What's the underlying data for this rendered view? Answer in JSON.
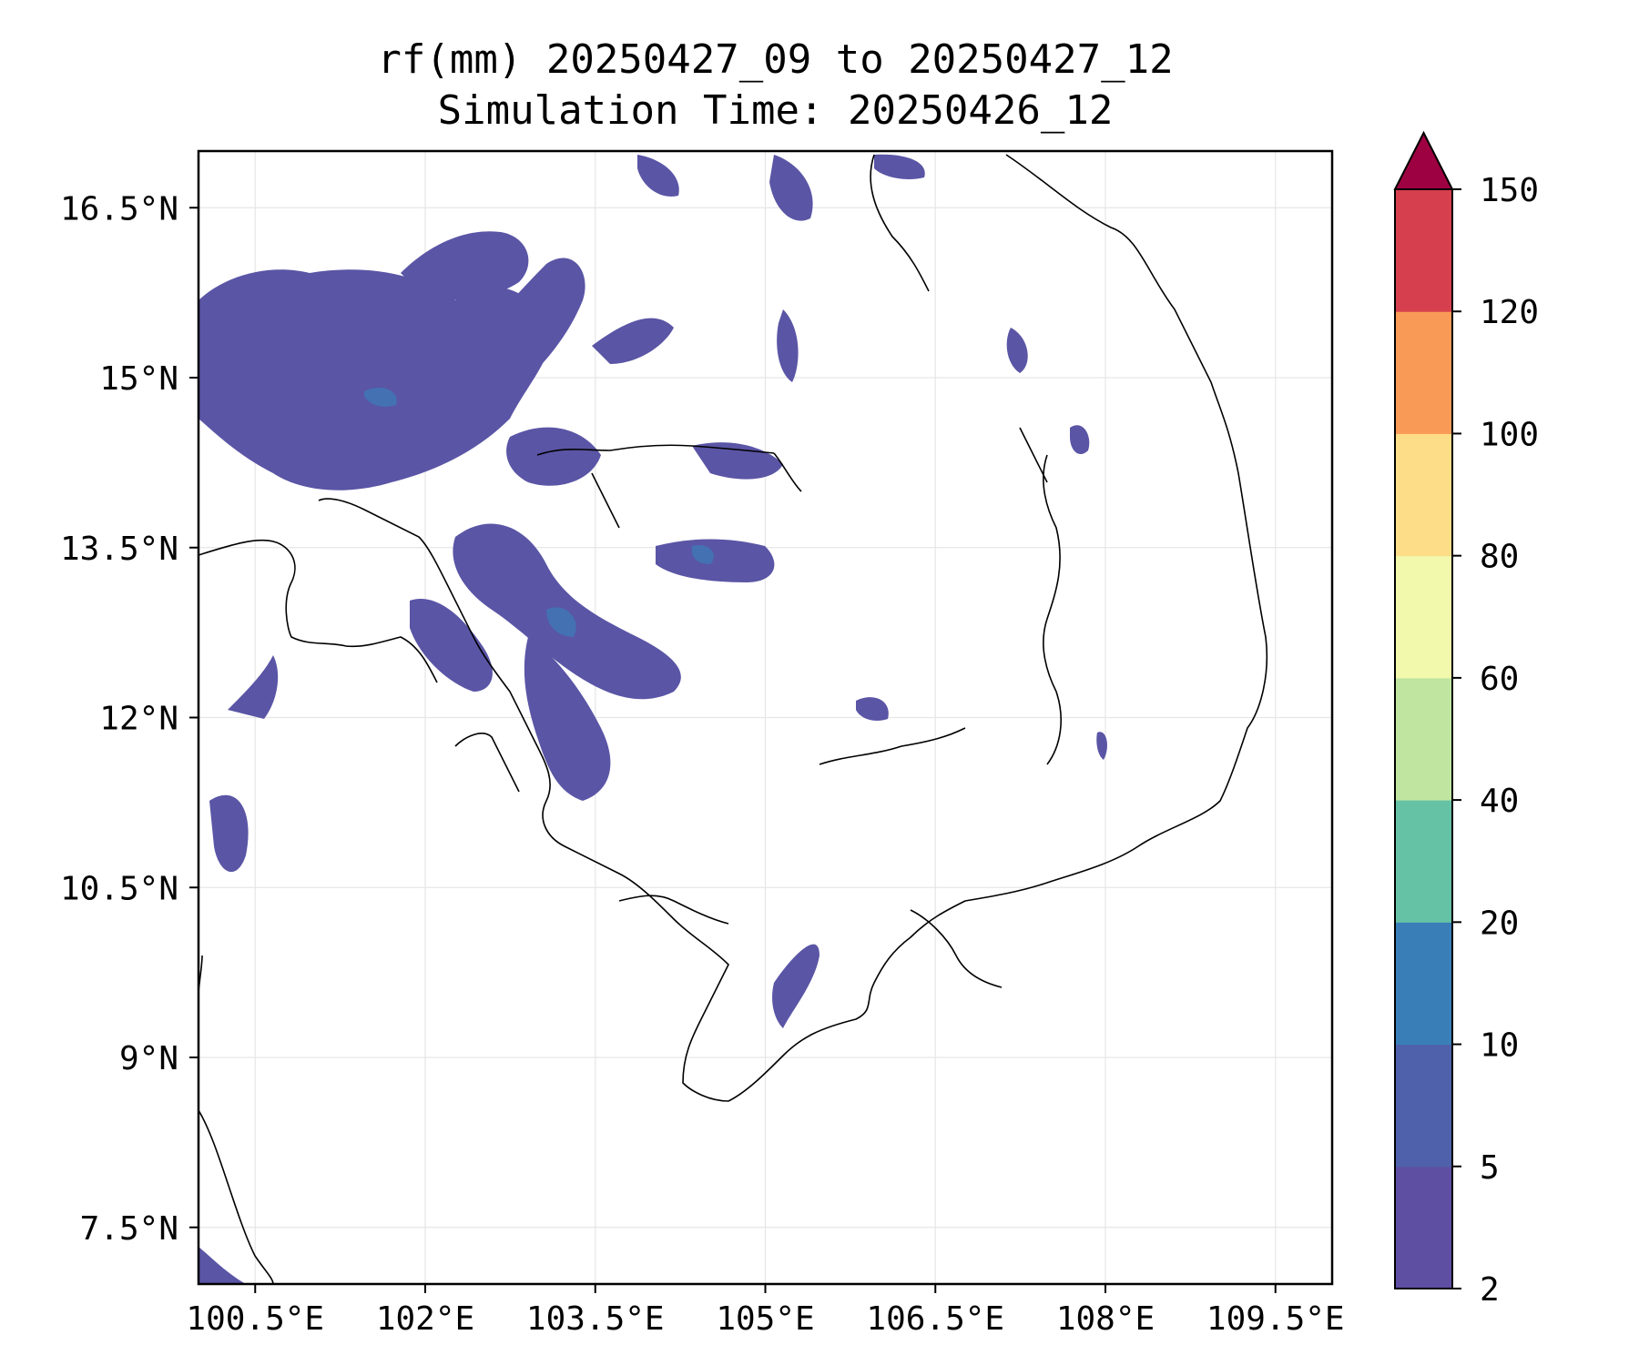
{
  "title": {
    "line1": "rf(mm) 20250427_09 to 20250427_12",
    "line2": "Simulation Time: 20250426_12"
  },
  "map": {
    "lon_range": [
      100.0,
      110.0
    ],
    "lat_range": [
      7.0,
      17.0
    ],
    "lat_ticks": [
      {
        "value": 16.5,
        "label": "16.5°N"
      },
      {
        "value": 15.0,
        "label": "15°N"
      },
      {
        "value": 13.5,
        "label": "13.5°N"
      },
      {
        "value": 12.0,
        "label": "12°N"
      },
      {
        "value": 10.5,
        "label": "10.5°N"
      },
      {
        "value": 9.0,
        "label": "9°N"
      },
      {
        "value": 7.5,
        "label": "7.5°N"
      }
    ],
    "lon_ticks": [
      {
        "value": 100.5,
        "label": "100.5°E"
      },
      {
        "value": 102.0,
        "label": "102°E"
      },
      {
        "value": 103.5,
        "label": "103.5°E"
      },
      {
        "value": 105.0,
        "label": "105°E"
      },
      {
        "value": 106.5,
        "label": "106.5°E"
      },
      {
        "value": 108.0,
        "label": "108°E"
      },
      {
        "value": 109.5,
        "label": "109.5°E"
      }
    ],
    "gridlines": true
  },
  "colorbar": {
    "levels": [
      "2",
      "5",
      "10",
      "20",
      "40",
      "60",
      "80",
      "100",
      "120",
      "150"
    ],
    "colors": [
      "#5e4fa2",
      "#4f61aa",
      "#3a7eb8",
      "#66c2a5",
      "#bfe5a0",
      "#f2f9ad",
      "#fddd87",
      "#f99a57",
      "#d6404e",
      "#9e0142"
    ],
    "extend": "max"
  }
}
